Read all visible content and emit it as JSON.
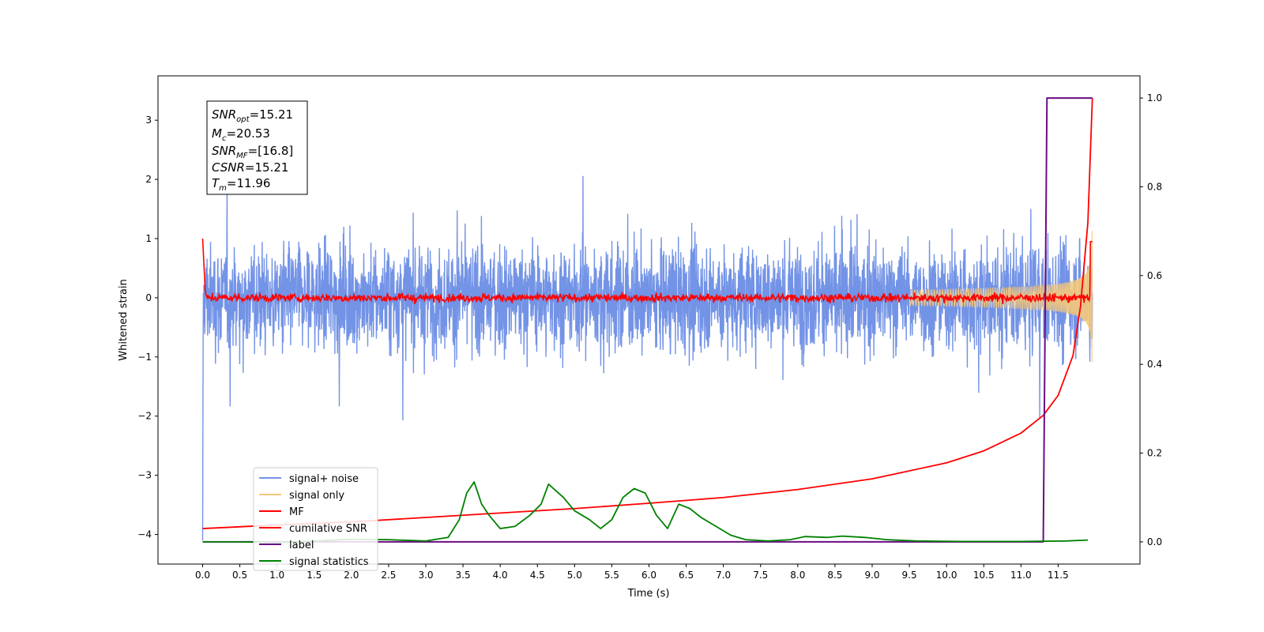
{
  "chart_data": {
    "type": "line",
    "xlabel": "Time (s)",
    "ylabel": "Whitened strain",
    "xlim": [
      -0.6,
      12.6
    ],
    "ylim": [
      -4.5,
      3.75
    ],
    "y2lim": [
      -0.05,
      1.05
    ],
    "xticks": [
      "0.0",
      "0.5",
      "1.0",
      "1.5",
      "2.0",
      "2.5",
      "3.0",
      "3.5",
      "4.0",
      "4.5",
      "5.0",
      "5.5",
      "6.0",
      "6.5",
      "7.0",
      "7.5",
      "8.0",
      "8.5",
      "9.0",
      "9.5",
      "10.0",
      "10.5",
      "11.0",
      "11.5"
    ],
    "yticks": [
      "3",
      "2",
      "1",
      "0",
      "−1",
      "−2",
      "−3",
      "−4"
    ],
    "y2ticks": [
      "1.0",
      "0.8",
      "0.6",
      "0.4",
      "0.2",
      "0.0"
    ],
    "grid": false,
    "legend_placement": "lower-left",
    "stats": {
      "snr_opt": "=15.21",
      "mc": "=20.53",
      "snr_mf": "=[16.8]",
      "csnr": "=15.21",
      "tm": "=11.96"
    },
    "series": [
      {
        "name": "signal+ noise",
        "color": "#7393e6",
        "description_values": {
          "x_range": [
            0.0,
            11.96
          ],
          "approx_range": [
            -2.4,
            2.8
          ]
        }
      },
      {
        "name": "signal only",
        "color": "#f5c97a",
        "chirp_end_amplitude": 1.0,
        "merger_time": 11.96
      },
      {
        "name": "MF",
        "color": "#ff0000",
        "start": 1.0,
        "baseline": 0.0,
        "end": 0.95
      },
      {
        "name": "cumilative SNR",
        "color": "#ff0000",
        "axis": "right",
        "x": [
          0.0,
          1.0,
          2.0,
          3.0,
          4.0,
          5.0,
          6.0,
          7.0,
          8.0,
          9.0,
          10.0,
          10.5,
          11.0,
          11.3,
          11.5,
          11.7,
          11.8,
          11.9,
          11.96
        ],
        "y": [
          0.03,
          0.038,
          0.045,
          0.055,
          0.065,
          0.075,
          0.087,
          0.1,
          0.118,
          0.142,
          0.178,
          0.205,
          0.245,
          0.285,
          0.33,
          0.42,
          0.53,
          0.72,
          1.0
        ]
      },
      {
        "name": "label",
        "color": "#6a0d83",
        "axis": "right",
        "x": [
          0.0,
          11.3,
          11.35,
          11.96
        ],
        "y": [
          0.0,
          0.0,
          1.0,
          1.0
        ]
      },
      {
        "name": "signal statistics",
        "color": "#008000",
        "axis": "right",
        "x": [
          0.0,
          0.5,
          1.0,
          1.5,
          2.0,
          2.5,
          3.0,
          3.3,
          3.45,
          3.55,
          3.65,
          3.75,
          3.85,
          4.0,
          4.2,
          4.4,
          4.55,
          4.65,
          4.75,
          4.85,
          5.0,
          5.2,
          5.35,
          5.5,
          5.65,
          5.8,
          5.95,
          6.1,
          6.25,
          6.4,
          6.55,
          6.7,
          6.9,
          7.1,
          7.3,
          7.6,
          7.9,
          8.1,
          8.4,
          8.6,
          8.9,
          9.2,
          9.6,
          10.2,
          11.0,
          11.6,
          11.9
        ],
        "y": [
          0.0,
          0.0,
          -0.002,
          0.002,
          0.006,
          0.005,
          0.002,
          0.01,
          0.05,
          0.11,
          0.135,
          0.085,
          0.06,
          0.03,
          0.035,
          0.06,
          0.085,
          0.13,
          0.115,
          0.1,
          0.07,
          0.05,
          0.03,
          0.05,
          0.1,
          0.12,
          0.11,
          0.06,
          0.03,
          0.085,
          0.075,
          0.055,
          0.035,
          0.015,
          0.005,
          0.002,
          0.005,
          0.012,
          0.01,
          0.013,
          0.01,
          0.005,
          0.002,
          0.001,
          0.001,
          0.002,
          0.004
        ]
      }
    ]
  }
}
